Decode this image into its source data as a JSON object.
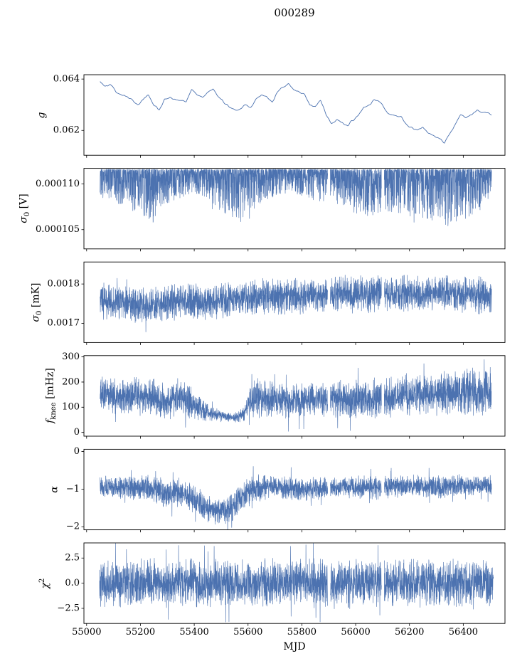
{
  "chart_data": {
    "type": "line",
    "title": "000289",
    "xlabel": "MJD",
    "line_color": "#4c72b0",
    "background": "#ffffff",
    "grid": false,
    "legend": false,
    "x_range": [
      54990,
      56555
    ],
    "x_ticks": [
      {
        "v": 55000,
        "label": "55000"
      },
      {
        "v": 55200,
        "label": "55200"
      },
      {
        "v": 55400,
        "label": "55400"
      },
      {
        "v": 55600,
        "label": "55600"
      },
      {
        "v": 55800,
        "label": "55800"
      },
      {
        "v": 56000,
        "label": "56000"
      },
      {
        "v": 56200,
        "label": "56200"
      },
      {
        "v": 56400,
        "label": "56400"
      }
    ],
    "gaps": [
      [
        55896,
        55906
      ],
      [
        56096,
        56106
      ]
    ],
    "panels": [
      {
        "name": "g",
        "label": {
          "pre": "g",
          "sub": "",
          "sup": "",
          "post": ""
        },
        "ylim": [
          0.06103,
          0.06417
        ],
        "yticks": [
          {
            "v": 0.062,
            "label": "0.062"
          },
          {
            "v": 0.064,
            "label": "0.064"
          }
        ],
        "style": "smooth",
        "jitter": 6e-05,
        "x": [
          55050,
          55070,
          55090,
          55110,
          55130,
          55150,
          55170,
          55190,
          55210,
          55230,
          55250,
          55270,
          55290,
          55310,
          55330,
          55350,
          55370,
          55390,
          55410,
          55430,
          55450,
          55470,
          55490,
          55510,
          55530,
          55550,
          55570,
          55590,
          55610,
          55630,
          55650,
          55670,
          55690,
          55710,
          55730,
          55750,
          55770,
          55790,
          55810,
          55830,
          55850,
          55870,
          55890,
          55910,
          55930,
          55950,
          55970,
          55990,
          56010,
          56030,
          56050,
          56070,
          56090,
          56110,
          56130,
          56150,
          56170,
          56190,
          56210,
          56230,
          56250,
          56270,
          56290,
          56310,
          56330,
          56350,
          56370,
          56390,
          56410,
          56430,
          56450,
          56470,
          56490,
          56505
        ],
        "y": [
          0.0639,
          0.0637,
          0.0638,
          0.0635,
          0.0634,
          0.0633,
          0.0632,
          0.063,
          0.0632,
          0.0634,
          0.063,
          0.0628,
          0.0632,
          0.0633,
          0.0632,
          0.0632,
          0.0631,
          0.0636,
          0.0634,
          0.0633,
          0.0635,
          0.0636,
          0.0633,
          0.0631,
          0.0629,
          0.0628,
          0.0628,
          0.063,
          0.0629,
          0.0632,
          0.0634,
          0.0633,
          0.0631,
          0.0635,
          0.0637,
          0.0638,
          0.0636,
          0.0635,
          0.0634,
          0.063,
          0.0629,
          0.0632,
          0.0626,
          0.0623,
          0.0624,
          0.0623,
          0.0622,
          0.0624,
          0.0626,
          0.0629,
          0.063,
          0.0632,
          0.0631,
          0.0628,
          0.0626,
          0.0626,
          0.0625,
          0.0622,
          0.0621,
          0.062,
          0.0621,
          0.0619,
          0.0618,
          0.0617,
          0.0615,
          0.0619,
          0.0622,
          0.0626,
          0.0625,
          0.0626,
          0.0628,
          0.0627,
          0.0627,
          0.0626
        ]
      },
      {
        "name": "sigma0_V",
        "label": {
          "pre": "σ",
          "sub": "0",
          "sup": "",
          "post": " [V]"
        },
        "ylim": [
          0.0001029,
          0.0001117
        ],
        "yticks": [
          {
            "v": 0.000105,
            "label": "0.000105"
          },
          {
            "v": 0.00011,
            "label": "0.000110"
          }
        ],
        "style": "noise-top",
        "hi": 0.0001116,
        "exp": 2.6,
        "spike_prob": 0.004,
        "spike_extra": 8e-07,
        "x": [
          55050,
          55100,
          55150,
          55200,
          55250,
          55300,
          55350,
          55400,
          55450,
          55500,
          55550,
          55600,
          55650,
          55700,
          55750,
          55800,
          55850,
          55900,
          55950,
          56000,
          56050,
          56100,
          56150,
          56200,
          56250,
          56300,
          56350,
          56400,
          56450,
          56505
        ],
        "lo": [
          0.0001085,
          0.000108,
          0.0001072,
          0.0001068,
          0.0001056,
          0.0001078,
          0.0001085,
          0.000109,
          0.0001082,
          0.000107,
          0.000106,
          0.0001066,
          0.000108,
          0.0001086,
          0.000109,
          0.0001086,
          0.0001081,
          0.000108,
          0.0001075,
          0.0001068,
          0.0001064,
          0.000107,
          0.0001069,
          0.0001065,
          0.000106,
          0.0001056,
          0.0001052,
          0.0001056,
          0.000107,
          0.000108
        ]
      },
      {
        "name": "sigma0_mK",
        "label": {
          "pre": "σ",
          "sub": "0",
          "sup": "",
          "post": " [mK]"
        },
        "ylim": [
          0.001651,
          0.001856
        ],
        "yticks": [
          {
            "v": 0.0017,
            "label": "0.0017"
          },
          {
            "v": 0.0018,
            "label": "0.0018"
          }
        ],
        "style": "noise-center",
        "spike_prob": 0.003,
        "x": [
          55050,
          55150,
          55250,
          55350,
          55450,
          55550,
          55650,
          55750,
          55850,
          55950,
          56050,
          56150,
          56250,
          56350,
          56450,
          56505
        ],
        "c": [
          0.001755,
          0.00175,
          0.001745,
          0.001757,
          0.001752,
          0.001762,
          0.001768,
          0.001768,
          0.00177,
          0.001775,
          0.001773,
          0.001777,
          0.001775,
          0.001778,
          0.001773,
          0.001772
        ],
        "s": 5e-05
      },
      {
        "name": "f_knee",
        "label": {
          "pre": "f",
          "sub": "knee",
          "sup": "",
          "post": " [mHz]"
        },
        "ylim": [
          -15,
          305
        ],
        "yticks": [
          {
            "v": 0,
            "label": "0"
          },
          {
            "v": 100,
            "label": "100"
          },
          {
            "v": 200,
            "label": "200"
          },
          {
            "v": 300,
            "label": "300"
          }
        ],
        "style": "noise-center",
        "spike_prob": 0.004,
        "x": [
          55050,
          55150,
          55250,
          55300,
          55350,
          55400,
          55430,
          55460,
          55490,
          55520,
          55550,
          55580,
          55620,
          55700,
          55800,
          55900,
          56000,
          56100,
          56150,
          56200,
          56300,
          56400,
          56505
        ],
        "c": [
          150,
          145,
          140,
          120,
          140,
          110,
          90,
          75,
          68,
          62,
          60,
          70,
          135,
          130,
          125,
          130,
          130,
          140,
          150,
          150,
          155,
          160,
          160
        ],
        "s": [
          85,
          80,
          80,
          70,
          85,
          65,
          50,
          35,
          28,
          22,
          20,
          30,
          85,
          80,
          75,
          80,
          80,
          85,
          90,
          90,
          95,
          105,
          105
        ]
      },
      {
        "name": "alpha",
        "label": {
          "pre": "α",
          "sub": "",
          "sup": "",
          "post": ""
        },
        "ylim": [
          -2.08,
          0.06
        ],
        "yticks": [
          {
            "v": 0,
            "label": "0"
          },
          {
            "v": -1,
            "label": "−1"
          },
          {
            "v": -2,
            "label": "−2"
          }
        ],
        "style": "noise-center",
        "spike_prob": 0.004,
        "x": [
          55050,
          55150,
          55250,
          55300,
          55330,
          55360,
          55400,
          55430,
          55460,
          55490,
          55520,
          55550,
          55580,
          55620,
          55700,
          55800,
          55900,
          56000,
          56100,
          56200,
          56300,
          56400,
          56505
        ],
        "c": [
          -0.92,
          -0.95,
          -1.0,
          -1.15,
          -1.05,
          -1.15,
          -1.25,
          -1.45,
          -1.55,
          -1.6,
          -1.55,
          -1.45,
          -1.15,
          -0.98,
          -0.95,
          -1.0,
          -0.95,
          -0.95,
          -0.95,
          -0.9,
          -0.95,
          -0.9,
          -0.9
        ],
        "s": [
          0.32,
          0.33,
          0.4,
          0.45,
          0.4,
          0.42,
          0.4,
          0.42,
          0.4,
          0.38,
          0.4,
          0.45,
          0.45,
          0.38,
          0.35,
          0.35,
          0.32,
          0.32,
          0.35,
          0.3,
          0.33,
          0.3,
          0.3
        ]
      },
      {
        "name": "chi2",
        "label": {
          "pre": "χ",
          "sub": "",
          "sup": "2",
          "post": ""
        },
        "ylim": [
          -4.0,
          4.0
        ],
        "yticks": [
          {
            "v": 2.5,
            "label": "2.5"
          },
          {
            "v": 0,
            "label": "0.0"
          },
          {
            "v": -2.5,
            "label": "−2.5"
          }
        ],
        "style": "noise-center",
        "spike_prob": 0.004,
        "x": [
          55048,
          56512
        ],
        "c": [
          0,
          0
        ],
        "s": 2.6
      }
    ]
  }
}
